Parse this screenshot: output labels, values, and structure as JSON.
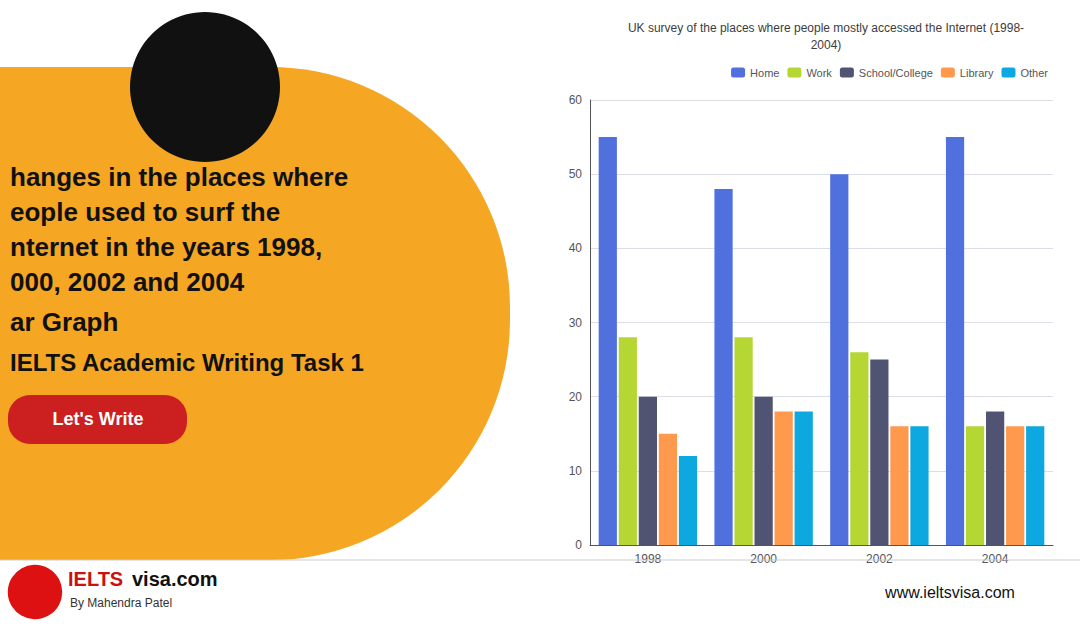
{
  "chart_data": {
    "type": "bar",
    "title": "UK survey of the places where people mostly accessed the Internet (1998-\n2004)",
    "categories": [
      "1998",
      "2000",
      "2002",
      "2004"
    ],
    "series": [
      {
        "name": "Home",
        "values": [
          55,
          48,
          50,
          55
        ]
      },
      {
        "name": "Work",
        "values": [
          28,
          28,
          26,
          16
        ]
      },
      {
        "name": "School/College",
        "values": [
          20,
          20,
          25,
          18
        ]
      },
      {
        "name": "Library",
        "values": [
          15,
          18,
          16,
          16
        ]
      },
      {
        "name": "Other",
        "values": [
          12,
          18,
          16,
          16
        ]
      }
    ],
    "ylim": [
      0,
      60
    ],
    "yticks": [
      0,
      10,
      20,
      30,
      40,
      50,
      60
    ],
    "grid": true,
    "legend": "upper right",
    "annotations": [
      "hanges in the places where",
      "eople used to surf the",
      "nternet in the years 1998,",
      "000, 2002 and 2004",
      "ar Graph",
      "IELTS Academic Writing Task 1",
      "Let's Write",
      "IELTS",
      "visa.com",
      "By Mahendra Patel",
      "www.ieltsvisa.com"
    ]
  }
}
